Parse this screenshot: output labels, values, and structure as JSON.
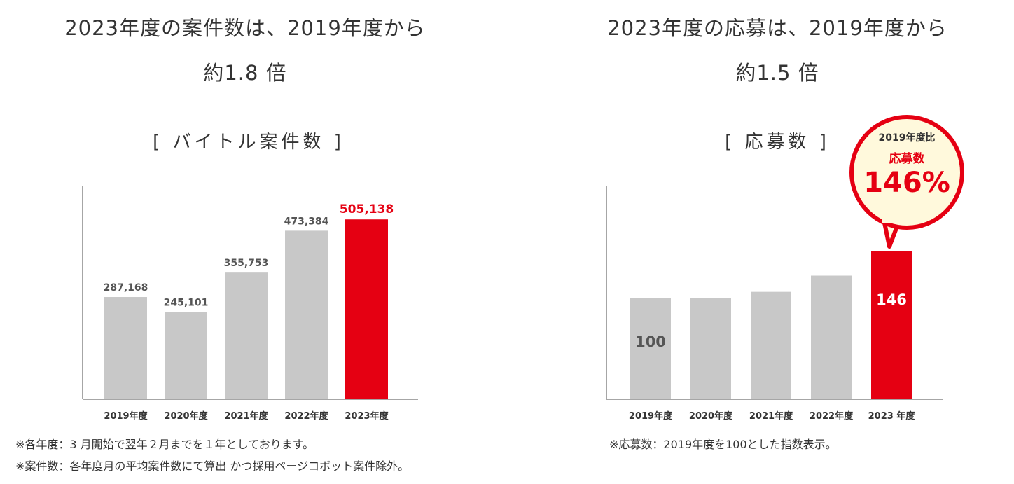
{
  "left": {
    "heading": [
      "2023年度の案件数は、2019年度から",
      "約1.8 倍"
    ],
    "subtitle": "[ バイトル案件数 ]",
    "notes": [
      "※各年度：3 月開始で翌年２月までを１年としております。",
      "※案件数：各年度月の平均案件数にて算出 かつ採用ページコボット案件除外。"
    ]
  },
  "right": {
    "heading": [
      "2023年度の応募は、2019年度から",
      "約1.5 倍"
    ],
    "subtitle": "[ 応募数 ]",
    "notes": [
      "※応募数：2019年度を100とした指数表示。"
    ],
    "bubble": {
      "line1": "2019年度比",
      "line2": "応募数",
      "value": "146%"
    }
  },
  "colors": {
    "bar": "#c8c8c8",
    "highlight": "#e50012",
    "axis": "#888888",
    "bubble_fill": "#fff9dc",
    "bubble_border": "#e50012"
  },
  "chart_data": [
    {
      "type": "bar",
      "title": "バイトル案件数",
      "categories": [
        "2019年度",
        "2020年度",
        "2021年度",
        "2022年度",
        "2023年度"
      ],
      "values": [
        287168,
        245101,
        355753,
        473384,
        505138
      ],
      "labels": [
        "287,168",
        "245,101",
        "355,753",
        "473,384",
        "505,138"
      ],
      "highlight_index": 4,
      "ylim": [
        0,
        600000
      ],
      "xlabel": "",
      "ylabel": ""
    },
    {
      "type": "bar",
      "title": "応募数",
      "categories": [
        "2019年度",
        "2020年度",
        "2021年度",
        "2022年度",
        "2023 年度"
      ],
      "values": [
        100,
        100,
        106,
        122,
        146
      ],
      "labels": [
        "100",
        "",
        "",
        "",
        "146"
      ],
      "highlight_index": 4,
      "ylim": [
        0,
        215
      ],
      "xlabel": "",
      "ylabel": ""
    }
  ]
}
